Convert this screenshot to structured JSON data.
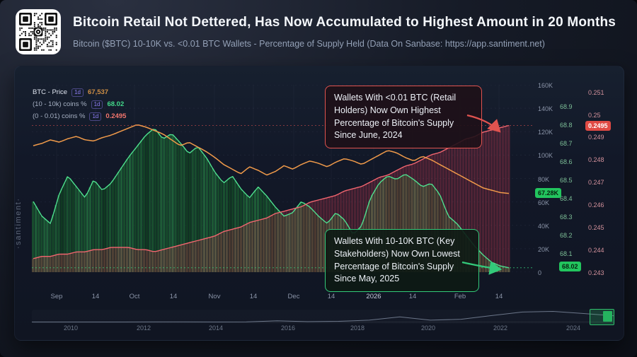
{
  "header": {
    "title": "Bitcoin Retail Not Dettered, Has Now Accumulated to Highest Amount in 20 Months",
    "subtitle": "Bitcoin ($BTC) 10-10K vs. <0.01 BTC Wallets - Percentage of Supply Held (Data On Sanbase: https://app.santiment.net)"
  },
  "watermark": "·santiment·",
  "legend": [
    {
      "label": "BTC - Price",
      "interval": "1d",
      "value": "67,537",
      "color": "#f09a4a"
    },
    {
      "label": "(10 - 10k) coins %",
      "interval": "1d",
      "value": "68.02",
      "color": "#43d98a"
    },
    {
      "label": "(0 - 0.01) coins %",
      "interval": "1d",
      "value": "0.2495",
      "color": "#f2756d"
    }
  ],
  "badges": {
    "price": "67.28K",
    "green": "68.02",
    "red": "0.2495"
  },
  "annotations": {
    "retail": {
      "text": "Wallets With <0.01 BTC (Retail Holders) Now Own Highest Percentage of Bitcoin's Supply Since June, 2024",
      "color": "#e0534f"
    },
    "stakeholders": {
      "text": "Wallets With 10-10K BTC (Key Stakeholders) Now Own Lowest Percentage of Bitcoin's Supply Since May, 2025",
      "color": "#33c97a"
    }
  },
  "axes": {
    "price_ticks": [
      "160K",
      "140K",
      "120K",
      "100K",
      "80K",
      "60K",
      "40K",
      "20K",
      "0"
    ],
    "green_ticks": [
      "68.9",
      "68.8",
      "68.7",
      "68.6",
      "68.5",
      "68.4",
      "68.3",
      "68.2",
      "68.1"
    ],
    "red_ticks": [
      "0.251",
      "0.25",
      "0.249",
      "0.248",
      "0.247",
      "0.246",
      "0.245",
      "0.244",
      "0.243"
    ],
    "x_ticks": [
      "Sep",
      "14",
      "Oct",
      "14",
      "Nov",
      "14",
      "Dec",
      "14",
      "2026",
      "14",
      "Feb",
      "14"
    ],
    "nav_years": [
      "2010",
      "2012",
      "2014",
      "2016",
      "2018",
      "2020",
      "2022",
      "2024"
    ]
  },
  "chart_data": {
    "type": "line",
    "title": "Bitcoin ($BTC) 10-10K vs. <0.01 BTC Wallets - Percentage of Supply Held",
    "x_range": "Sep 2025 - Feb 14, 2026 (values sampled ~every 3 days)",
    "legend_position": "top-left",
    "grid": true,
    "series": [
      {
        "name": "BTC - Price (thousand USD)",
        "color": "#f09a4a",
        "style": "line",
        "axis": {
          "min": 0,
          "max": 160
        },
        "values": [
          108,
          110,
          113,
          111,
          114,
          116,
          113,
          112,
          115,
          117,
          120,
          123,
          126,
          124,
          121,
          118,
          113,
          108,
          111,
          107,
          103,
          98,
          92,
          88,
          84,
          90,
          87,
          83,
          86,
          91,
          88,
          92,
          95,
          93,
          90,
          94,
          97,
          95,
          92,
          96,
          100,
          104,
          102,
          98,
          95,
          99,
          96,
          92,
          88,
          84,
          80,
          76,
          72,
          70,
          68,
          67.28
        ],
        "last_value": "67.28K"
      },
      {
        "name": "(10 - 10k) coins % of supply",
        "color": "#4ee08f",
        "style": "bars+line",
        "axis": {
          "min": 67.996,
          "max": 69.015
        },
        "values": [
          68.38,
          68.3,
          68.26,
          68.42,
          68.52,
          68.46,
          68.4,
          68.5,
          68.44,
          68.48,
          68.55,
          68.62,
          68.68,
          68.74,
          68.78,
          68.72,
          68.75,
          68.7,
          68.64,
          68.68,
          68.62,
          68.54,
          68.48,
          68.52,
          68.45,
          68.4,
          68.46,
          68.41,
          68.35,
          68.3,
          68.32,
          68.38,
          68.35,
          68.3,
          68.26,
          68.32,
          68.28,
          68.2,
          68.25,
          68.4,
          68.48,
          68.52,
          68.5,
          68.53,
          68.5,
          68.46,
          68.48,
          68.42,
          68.3,
          68.26,
          68.2,
          68.14,
          68.09,
          68.05,
          68.03,
          68.02
        ],
        "last_value": "68.02"
      },
      {
        "name": "(0 - 0.01) coins % of supply",
        "color": "#f2656f",
        "style": "area+line",
        "axis": {
          "min": 0.243,
          "max": 0.2513
        },
        "values": [
          0.2436,
          0.2437,
          0.2437,
          0.2438,
          0.2438,
          0.2439,
          0.2439,
          0.244,
          0.244,
          0.2441,
          0.2441,
          0.2441,
          0.244,
          0.244,
          0.2439,
          0.244,
          0.2441,
          0.2442,
          0.2443,
          0.2444,
          0.2445,
          0.2446,
          0.2448,
          0.2449,
          0.245,
          0.2452,
          0.2453,
          0.2454,
          0.2456,
          0.2457,
          0.2458,
          0.2459,
          0.2461,
          0.2462,
          0.2463,
          0.2464,
          0.2466,
          0.2467,
          0.2468,
          0.247,
          0.2472,
          0.2473,
          0.2475,
          0.2477,
          0.2478,
          0.248,
          0.2482,
          0.2483,
          0.2485,
          0.2487,
          0.2489,
          0.249,
          0.2492,
          0.2493,
          0.2494,
          0.2495
        ],
        "last_value": "0.2495"
      }
    ],
    "navigator": {
      "years_span": "2009 - 2026",
      "values": [
        0.1,
        0.1,
        0.2,
        0.1,
        0.9,
        0.5,
        0.3,
        0.7,
        14,
        4,
        8,
        20,
        55,
        20,
        30,
        70,
        108,
        115,
        92,
        67
      ],
      "selection": "Sep 2025 - Feb 2026"
    }
  }
}
